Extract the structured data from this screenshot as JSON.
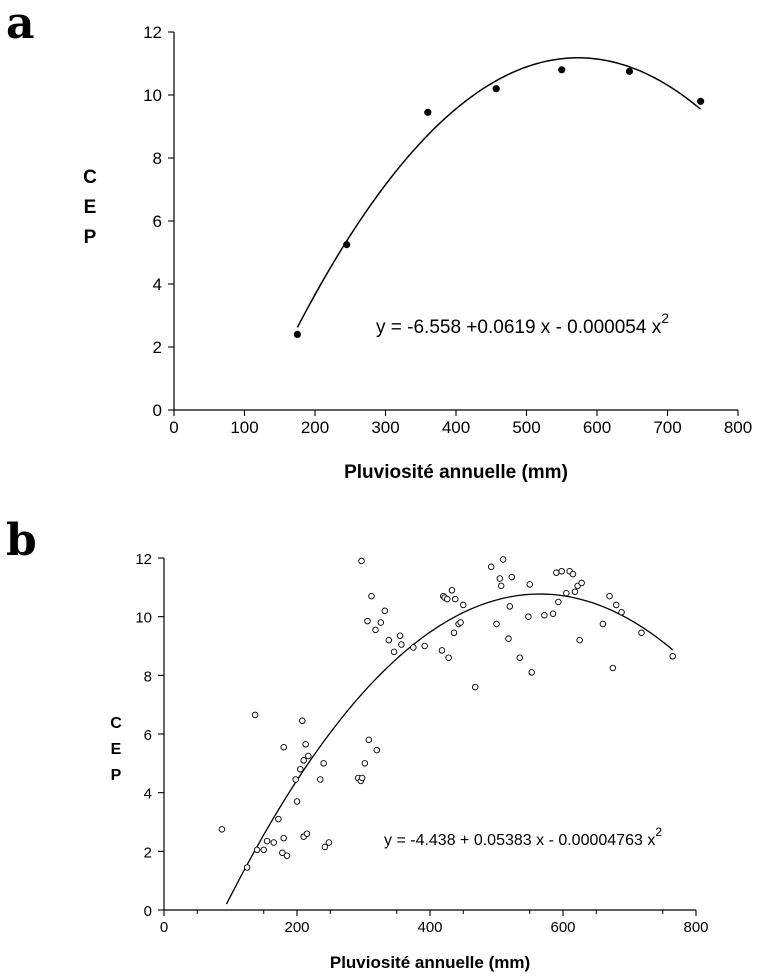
{
  "chart_data": [
    {
      "panel": "a",
      "type": "scatter",
      "xlabel": "Pluviosité annuelle (mm)",
      "ylabel_letters": [
        "C",
        "E",
        "P"
      ],
      "xlim": [
        0,
        800
      ],
      "ylim": [
        0,
        12
      ],
      "xticks": [
        0,
        100,
        200,
        300,
        400,
        500,
        600,
        700,
        800
      ],
      "yticks": [
        0,
        2,
        4,
        6,
        8,
        10,
        12
      ],
      "grid": false,
      "points": [
        {
          "x": 175,
          "y": 2.4
        },
        {
          "x": 245,
          "y": 5.25
        },
        {
          "x": 360,
          "y": 9.45
        },
        {
          "x": 457,
          "y": 10.2
        },
        {
          "x": 550,
          "y": 10.8
        },
        {
          "x": 646,
          "y": 10.75
        },
        {
          "x": 747,
          "y": 9.8
        }
      ],
      "marker": "filled",
      "fit": {
        "a": -6.558,
        "b": 0.0619,
        "c": -5.4e-05,
        "x_range": [
          175,
          747
        ]
      },
      "equation": {
        "text": "y = -6.558 +0.0619 x - 0.000054 x",
        "sup": "2"
      }
    },
    {
      "panel": "b",
      "type": "scatter",
      "xlabel": "Pluviosité annuelle (mm)",
      "ylabel_letters": [
        "C",
        "E",
        "P"
      ],
      "xlim": [
        0,
        800
      ],
      "ylim": [
        0,
        12
      ],
      "xticks": [
        0,
        200,
        400,
        600,
        800
      ],
      "yticks": [
        0,
        2,
        4,
        6,
        8,
        10,
        12
      ],
      "grid": false,
      "points": [
        {
          "x": 87,
          "y": 2.75
        },
        {
          "x": 125,
          "y": 1.45
        },
        {
          "x": 137,
          "y": 6.65
        },
        {
          "x": 140,
          "y": 2.05
        },
        {
          "x": 150,
          "y": 2.05
        },
        {
          "x": 155,
          "y": 2.35
        },
        {
          "x": 165,
          "y": 2.3
        },
        {
          "x": 172,
          "y": 3.1
        },
        {
          "x": 178,
          "y": 1.95
        },
        {
          "x": 180,
          "y": 2.45
        },
        {
          "x": 180,
          "y": 5.55
        },
        {
          "x": 185,
          "y": 1.85
        },
        {
          "x": 198,
          "y": 4.45
        },
        {
          "x": 200,
          "y": 3.7
        },
        {
          "x": 205,
          "y": 4.8
        },
        {
          "x": 208,
          "y": 6.45
        },
        {
          "x": 210,
          "y": 5.1
        },
        {
          "x": 210,
          "y": 2.5
        },
        {
          "x": 213,
          "y": 5.65
        },
        {
          "x": 215,
          "y": 2.6
        },
        {
          "x": 217,
          "y": 5.25
        },
        {
          "x": 235,
          "y": 4.45
        },
        {
          "x": 240,
          "y": 5.0
        },
        {
          "x": 242,
          "y": 2.15
        },
        {
          "x": 248,
          "y": 2.3
        },
        {
          "x": 292,
          "y": 4.5
        },
        {
          "x": 296,
          "y": 4.4
        },
        {
          "x": 297,
          "y": 11.9
        },
        {
          "x": 298,
          "y": 4.5
        },
        {
          "x": 302,
          "y": 5.0
        },
        {
          "x": 306,
          "y": 9.85
        },
        {
          "x": 308,
          "y": 5.8
        },
        {
          "x": 312,
          "y": 10.7
        },
        {
          "x": 318,
          "y": 9.55
        },
        {
          "x": 320,
          "y": 5.45
        },
        {
          "x": 326,
          "y": 9.8
        },
        {
          "x": 332,
          "y": 10.2
        },
        {
          "x": 338,
          "y": 9.2
        },
        {
          "x": 346,
          "y": 8.8
        },
        {
          "x": 355,
          "y": 9.35
        },
        {
          "x": 357,
          "y": 9.05
        },
        {
          "x": 375,
          "y": 8.95
        },
        {
          "x": 392,
          "y": 9.0
        },
        {
          "x": 418,
          "y": 8.85
        },
        {
          "x": 420,
          "y": 10.7
        },
        {
          "x": 422,
          "y": 10.65
        },
        {
          "x": 426,
          "y": 10.6
        },
        {
          "x": 428,
          "y": 8.6
        },
        {
          "x": 433,
          "y": 10.9
        },
        {
          "x": 436,
          "y": 9.45
        },
        {
          "x": 438,
          "y": 10.6
        },
        {
          "x": 443,
          "y": 9.75
        },
        {
          "x": 446,
          "y": 9.8
        },
        {
          "x": 450,
          "y": 10.4
        },
        {
          "x": 468,
          "y": 7.6
        },
        {
          "x": 492,
          "y": 11.7
        },
        {
          "x": 500,
          "y": 9.75
        },
        {
          "x": 505,
          "y": 11.3
        },
        {
          "x": 507,
          "y": 11.05
        },
        {
          "x": 510,
          "y": 11.95
        },
        {
          "x": 518,
          "y": 9.25
        },
        {
          "x": 520,
          "y": 10.35
        },
        {
          "x": 523,
          "y": 11.35
        },
        {
          "x": 535,
          "y": 8.6
        },
        {
          "x": 548,
          "y": 10.0
        },
        {
          "x": 550,
          "y": 11.1
        },
        {
          "x": 553,
          "y": 8.1
        },
        {
          "x": 572,
          "y": 10.05
        },
        {
          "x": 585,
          "y": 10.1
        },
        {
          "x": 590,
          "y": 11.5
        },
        {
          "x": 593,
          "y": 10.5
        },
        {
          "x": 598,
          "y": 11.55
        },
        {
          "x": 605,
          "y": 10.8
        },
        {
          "x": 610,
          "y": 11.55
        },
        {
          "x": 615,
          "y": 11.45
        },
        {
          "x": 618,
          "y": 10.85
        },
        {
          "x": 622,
          "y": 11.05
        },
        {
          "x": 625,
          "y": 9.2
        },
        {
          "x": 628,
          "y": 11.15
        },
        {
          "x": 660,
          "y": 9.75
        },
        {
          "x": 670,
          "y": 10.7
        },
        {
          "x": 675,
          "y": 8.25
        },
        {
          "x": 680,
          "y": 10.4
        },
        {
          "x": 688,
          "y": 10.15
        },
        {
          "x": 718,
          "y": 9.45
        },
        {
          "x": 765,
          "y": 8.65
        }
      ],
      "marker": "open",
      "fit": {
        "a": -4.438,
        "b": 0.05383,
        "c": -4.763e-05,
        "x_range": [
          94,
          765
        ]
      },
      "equation": {
        "text": "y = -4.438 + 0.05383 x - 0.00004763 x",
        "sup": "2"
      }
    }
  ]
}
